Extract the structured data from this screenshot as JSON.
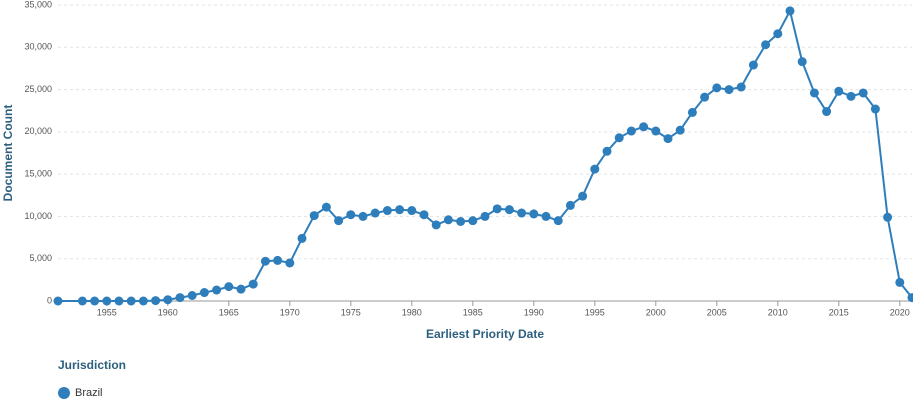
{
  "chart_data": {
    "type": "line",
    "x": [
      1951,
      1953,
      1954,
      1955,
      1956,
      1957,
      1958,
      1959,
      1960,
      1961,
      1962,
      1963,
      1964,
      1965,
      1966,
      1967,
      1968,
      1969,
      1970,
      1971,
      1972,
      1973,
      1974,
      1975,
      1976,
      1977,
      1978,
      1979,
      1980,
      1981,
      1982,
      1983,
      1984,
      1985,
      1986,
      1987,
      1988,
      1989,
      1990,
      1991,
      1992,
      1993,
      1994,
      1995,
      1996,
      1997,
      1998,
      1999,
      2000,
      2001,
      2002,
      2003,
      2004,
      2005,
      2006,
      2007,
      2008,
      2009,
      2010,
      2011,
      2012,
      2013,
      2014,
      2015,
      2016,
      2017,
      2018,
      2019,
      2020,
      2021
    ],
    "series": [
      {
        "name": "Brazil",
        "color": "#2f7ebc",
        "values": [
          0,
          0,
          0,
          0,
          0,
          0,
          0,
          50,
          150,
          400,
          650,
          1000,
          1300,
          1700,
          1400,
          2000,
          4700,
          4800,
          4500,
          7400,
          10100,
          11100,
          9500,
          10200,
          10000,
          10400,
          10700,
          10800,
          10700,
          10200,
          9000,
          9600,
          9400,
          9500,
          10000,
          10900,
          10800,
          10400,
          10300,
          10000,
          9500,
          11300,
          12400,
          15600,
          17700,
          19300,
          20100,
          20600,
          20100,
          19200,
          20200,
          22300,
          24100,
          25200,
          25000,
          25300,
          27900,
          30300,
          31600,
          34300,
          28300,
          24600,
          22400,
          24800,
          24200,
          24600,
          22700,
          9900,
          2200,
          400
        ]
      }
    ],
    "xlim": [
      1951,
      2021
    ],
    "xticks": [
      1955,
      1960,
      1965,
      1970,
      1975,
      1980,
      1985,
      1990,
      1995,
      2000,
      2005,
      2010,
      2015,
      2020
    ],
    "ylim": [
      0,
      35000
    ],
    "yticks": [
      0,
      {
        "value": 5000,
        "label": "5,000"
      },
      {
        "value": 10000,
        "label": "10,000"
      },
      {
        "value": 15000,
        "label": "15,000"
      },
      {
        "value": 20000,
        "label": "20,000"
      },
      {
        "value": 25000,
        "label": "25,000"
      },
      {
        "value": 30000,
        "label": "30,000"
      },
      {
        "value": 35000,
        "label": "35,000"
      }
    ],
    "grid": true,
    "x_label": "Earliest Priority Date",
    "y_label": "Document Count",
    "legend_title": "Jurisdiction"
  }
}
